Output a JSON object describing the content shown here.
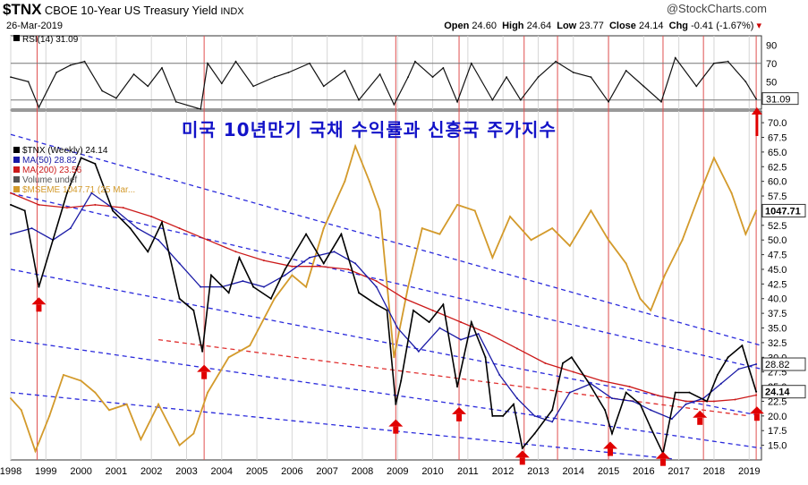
{
  "header": {
    "ticker": "$TNX",
    "name": "CBOE 10-Year US Treasury Yield",
    "exchange": "INDX",
    "date": "26-Mar-2019",
    "watermark": "@StockCharts.com",
    "ohlc": {
      "open_label": "Open",
      "open": "24.60",
      "high_label": "High",
      "high": "24.64",
      "low_label": "Low",
      "low": "23.77",
      "close_label": "Close",
      "close": "24.14",
      "chg_label": "Chg",
      "chg": "-0.41 (-1.67%)"
    }
  },
  "overlay_title": "미국 10년만기 국채 수익률과 신흥국 주가지수",
  "chart_data": {
    "type": "line",
    "x_range": [
      1998,
      2019.35
    ],
    "x_ticks": [
      "1998",
      "1999",
      "2000",
      "2001",
      "2002",
      "2003",
      "2004",
      "2005",
      "2006",
      "2007",
      "2008",
      "2009",
      "2010",
      "2011",
      "2012",
      "2013",
      "2014",
      "2015",
      "2016",
      "2017",
      "2018",
      "2019"
    ],
    "rsi_panel": {
      "legend": "RSI(14) 31.09",
      "last_value_label": "31.09",
      "ylim": [
        20,
        100
      ],
      "y_ticks": [
        "90",
        "70",
        "50",
        "30"
      ],
      "reference_lines": [
        70,
        30
      ],
      "series": [
        [
          1998.0,
          55
        ],
        [
          1998.5,
          50
        ],
        [
          1998.8,
          22
        ],
        [
          1999.3,
          60
        ],
        [
          1999.7,
          68
        ],
        [
          2000.1,
          72
        ],
        [
          2000.6,
          40
        ],
        [
          2001.0,
          32
        ],
        [
          2001.5,
          58
        ],
        [
          2001.9,
          45
        ],
        [
          2002.3,
          65
        ],
        [
          2002.7,
          28
        ],
        [
          2003.4,
          20
        ],
        [
          2003.6,
          70
        ],
        [
          2004.0,
          48
        ],
        [
          2004.4,
          72
        ],
        [
          2004.9,
          45
        ],
        [
          2005.5,
          55
        ],
        [
          2005.9,
          60
        ],
        [
          2006.5,
          70
        ],
        [
          2006.9,
          45
        ],
        [
          2007.5,
          62
        ],
        [
          2007.9,
          30
        ],
        [
          2008.5,
          58
        ],
        [
          2008.9,
          25
        ],
        [
          2009.3,
          55
        ],
        [
          2009.5,
          72
        ],
        [
          2010.0,
          55
        ],
        [
          2010.3,
          65
        ],
        [
          2010.7,
          28
        ],
        [
          2011.1,
          70
        ],
        [
          2011.7,
          30
        ],
        [
          2012.1,
          55
        ],
        [
          2012.5,
          30
        ],
        [
          2013.0,
          55
        ],
        [
          2013.5,
          72
        ],
        [
          2014.0,
          60
        ],
        [
          2014.5,
          55
        ],
        [
          2015.0,
          28
        ],
        [
          2015.5,
          62
        ],
        [
          2016.0,
          45
        ],
        [
          2016.5,
          28
        ],
        [
          2016.9,
          76
        ],
        [
          2017.5,
          45
        ],
        [
          2018.0,
          70
        ],
        [
          2018.4,
          72
        ],
        [
          2018.9,
          50
        ],
        [
          2019.2,
          31.09
        ]
      ]
    },
    "price_panel": {
      "ylim": [
        12.5,
        72
      ],
      "y_ticks": [
        "70.0",
        "67.5",
        "65.0",
        "62.5",
        "60.0",
        "57.5",
        "55.0",
        "52.5",
        "50.0",
        "47.5",
        "45.0",
        "42.5",
        "40.0",
        "37.5",
        "35.0",
        "32.5",
        "30.0",
        "27.5",
        "25.0",
        "22.5",
        "20.0",
        "17.5",
        "15.0"
      ],
      "last_value_labels": {
        "emerging": "1047.71",
        "ma50": "28.82",
        "tnx": "24.14"
      },
      "legend": [
        {
          "label": "$TNX (Weekly) 24.14",
          "color": "#000000"
        },
        {
          "label": "MA(50) 28.82",
          "color": "#1a1aa6"
        },
        {
          "label": "MA(200) 23.56",
          "color": "#cc1a1a"
        },
        {
          "label": "Volume undef",
          "color": "#555555"
        },
        {
          "label": "$MSEME 1047.71 (25 Mar...",
          "color": "#d39a2b"
        }
      ],
      "series": [
        {
          "name": "$TNX (Weekly)",
          "color": "#000000",
          "values": [
            [
              1998.0,
              56
            ],
            [
              1998.4,
              55
            ],
            [
              1998.8,
              42
            ],
            [
              1999.2,
              50
            ],
            [
              1999.6,
              58
            ],
            [
              2000.0,
              64
            ],
            [
              2000.4,
              63
            ],
            [
              2000.9,
              55
            ],
            [
              2001.4,
              52
            ],
            [
              2001.9,
              48
            ],
            [
              2002.3,
              53
            ],
            [
              2002.8,
              40
            ],
            [
              2003.2,
              38
            ],
            [
              2003.45,
              31
            ],
            [
              2003.7,
              44
            ],
            [
              2004.2,
              41
            ],
            [
              2004.5,
              47
            ],
            [
              2004.9,
              42
            ],
            [
              2005.4,
              40
            ],
            [
              2005.8,
              45
            ],
            [
              2006.4,
              51
            ],
            [
              2006.9,
              46
            ],
            [
              2007.4,
              51
            ],
            [
              2007.9,
              41
            ],
            [
              2008.4,
              39
            ],
            [
              2008.7,
              38
            ],
            [
              2008.95,
              22
            ],
            [
              2009.1,
              26
            ],
            [
              2009.45,
              38
            ],
            [
              2009.9,
              36
            ],
            [
              2010.3,
              39
            ],
            [
              2010.7,
              25
            ],
            [
              2011.1,
              36
            ],
            [
              2011.5,
              30
            ],
            [
              2011.7,
              20
            ],
            [
              2012.0,
              20
            ],
            [
              2012.3,
              22
            ],
            [
              2012.55,
              14.5
            ],
            [
              2012.9,
              17
            ],
            [
              2013.4,
              21
            ],
            [
              2013.7,
              29
            ],
            [
              2013.95,
              30
            ],
            [
              2014.4,
              26
            ],
            [
              2014.9,
              21
            ],
            [
              2015.1,
              17
            ],
            [
              2015.5,
              24
            ],
            [
              2015.9,
              22
            ],
            [
              2016.2,
              18
            ],
            [
              2016.55,
              13.6
            ],
            [
              2016.9,
              24
            ],
            [
              2017.3,
              24
            ],
            [
              2017.8,
              22.5
            ],
            [
              2018.1,
              27
            ],
            [
              2018.4,
              30
            ],
            [
              2018.8,
              32
            ],
            [
              2019.0,
              28
            ],
            [
              2019.2,
              24.14
            ]
          ]
        },
        {
          "name": "MA(50)",
          "color": "#1a1aa6",
          "values": [
            [
              1998.0,
              51
            ],
            [
              1998.6,
              52
            ],
            [
              1999.2,
              50
            ],
            [
              1999.7,
              52
            ],
            [
              2000.3,
              58
            ],
            [
              2001.0,
              55
            ],
            [
              2001.6,
              52
            ],
            [
              2002.2,
              50
            ],
            [
              2002.8,
              46
            ],
            [
              2003.4,
              42
            ],
            [
              2004.0,
              42
            ],
            [
              2004.6,
              43
            ],
            [
              2005.2,
              42
            ],
            [
              2005.8,
              44
            ],
            [
              2006.5,
              47
            ],
            [
              2007.2,
              48
            ],
            [
              2007.8,
              46
            ],
            [
              2008.4,
              42
            ],
            [
              2009.0,
              35
            ],
            [
              2009.6,
              31
            ],
            [
              2010.2,
              35
            ],
            [
              2010.8,
              33
            ],
            [
              2011.3,
              34
            ],
            [
              2011.9,
              27
            ],
            [
              2012.4,
              23
            ],
            [
              2012.9,
              20
            ],
            [
              2013.4,
              19
            ],
            [
              2013.9,
              24
            ],
            [
              2014.5,
              25.5
            ],
            [
              2015.1,
              23
            ],
            [
              2015.7,
              22.5
            ],
            [
              2016.2,
              21
            ],
            [
              2016.8,
              19.5
            ],
            [
              2017.2,
              22
            ],
            [
              2017.7,
              23
            ],
            [
              2018.2,
              25.5
            ],
            [
              2018.7,
              28
            ],
            [
              2019.2,
              28.82
            ]
          ]
        },
        {
          "name": "MA(200)",
          "color": "#cc1a1a",
          "values": [
            [
              1998.0,
              58
            ],
            [
              1998.8,
              56
            ],
            [
              1999.6,
              55.5
            ],
            [
              2000.4,
              56
            ],
            [
              2001.2,
              55.5
            ],
            [
              2002.0,
              54
            ],
            [
              2002.8,
              52
            ],
            [
              2003.6,
              50
            ],
            [
              2004.4,
              48
            ],
            [
              2005.2,
              46.5
            ],
            [
              2006.0,
              45.5
            ],
            [
              2006.8,
              45.5
            ],
            [
              2007.6,
              45
            ],
            [
              2008.4,
              43
            ],
            [
              2009.2,
              40
            ],
            [
              2010.0,
              38
            ],
            [
              2010.8,
              36
            ],
            [
              2011.6,
              34
            ],
            [
              2012.4,
              31.5
            ],
            [
              2013.2,
              29
            ],
            [
              2014.0,
              27.5
            ],
            [
              2014.8,
              26
            ],
            [
              2015.6,
              25
            ],
            [
              2016.4,
              23.5
            ],
            [
              2017.2,
              22.5
            ],
            [
              2018.0,
              22.5
            ],
            [
              2018.6,
              22.8
            ],
            [
              2019.2,
              23.56
            ]
          ]
        },
        {
          "name": "$MSEME",
          "color": "#d39a2b",
          "values": [
            [
              1998.0,
              23
            ],
            [
              1998.3,
              21
            ],
            [
              1998.7,
              14
            ],
            [
              1999.1,
              20
            ],
            [
              1999.5,
              27
            ],
            [
              2000.0,
              26
            ],
            [
              2000.4,
              24
            ],
            [
              2000.8,
              21
            ],
            [
              2001.3,
              22
            ],
            [
              2001.7,
              16
            ],
            [
              2002.2,
              22
            ],
            [
              2002.8,
              15
            ],
            [
              2003.2,
              17
            ],
            [
              2003.6,
              24
            ],
            [
              2004.2,
              30
            ],
            [
              2004.8,
              32
            ],
            [
              2005.5,
              40
            ],
            [
              2006.0,
              44
            ],
            [
              2006.4,
              42
            ],
            [
              2006.9,
              52
            ],
            [
              2007.5,
              60
            ],
            [
              2007.8,
              66
            ],
            [
              2008.2,
              60
            ],
            [
              2008.5,
              55
            ],
            [
              2008.9,
              30
            ],
            [
              2009.3,
              42
            ],
            [
              2009.7,
              52
            ],
            [
              2010.2,
              51
            ],
            [
              2010.7,
              56
            ],
            [
              2011.2,
              55
            ],
            [
              2011.7,
              47
            ],
            [
              2012.2,
              54
            ],
            [
              2012.8,
              50
            ],
            [
              2013.4,
              52
            ],
            [
              2013.9,
              49
            ],
            [
              2014.5,
              55
            ],
            [
              2015.0,
              50
            ],
            [
              2015.5,
              46
            ],
            [
              2015.9,
              40
            ],
            [
              2016.2,
              38
            ],
            [
              2016.6,
              44
            ],
            [
              2017.1,
              50
            ],
            [
              2017.6,
              58
            ],
            [
              2018.0,
              64
            ],
            [
              2018.5,
              58
            ],
            [
              2018.9,
              51
            ],
            [
              2019.2,
              55
            ]
          ]
        }
      ],
      "trend_channel_lines": [
        {
          "style": "blue-dashed",
          "points": [
            [
              1998.0,
              68
            ],
            [
              2019.35,
              32
            ]
          ]
        },
        {
          "style": "blue-dashed",
          "points": [
            [
              1998.0,
              58
            ],
            [
              2019.35,
              28
            ]
          ]
        },
        {
          "style": "blue-dashed",
          "points": [
            [
              1998.0,
              45
            ],
            [
              2019.35,
              20
            ]
          ]
        },
        {
          "style": "blue-dashed",
          "points": [
            [
              1998.0,
              33
            ],
            [
              2019.35,
              14.5
            ]
          ]
        },
        {
          "style": "blue-dashed",
          "points": [
            [
              1998.0,
              24
            ],
            [
              2016.8,
              12.7
            ]
          ]
        },
        {
          "style": "red-dashed",
          "points": [
            [
              2002.2,
              33
            ],
            [
              2019.0,
              20
            ]
          ]
        }
      ],
      "arrows": [
        {
          "x": 1998.8,
          "y": 39,
          "direction": "up"
        },
        {
          "x": 2003.5,
          "y": 27.5,
          "direction": "up"
        },
        {
          "x": 2008.95,
          "y": 18.2,
          "direction": "up"
        },
        {
          "x": 2010.75,
          "y": 20.3,
          "direction": "up"
        },
        {
          "x": 2012.55,
          "y": 12.9,
          "direction": "up"
        },
        {
          "x": 2015.05,
          "y": 14.4,
          "direction": "up"
        },
        {
          "x": 2016.55,
          "y": 12.7,
          "direction": "up"
        },
        {
          "x": 2017.6,
          "y": 19.7,
          "direction": "up"
        },
        {
          "x": 2019.22,
          "y": 20.4,
          "direction": "up"
        }
      ],
      "rsi_arrow": {
        "x": 2019.22,
        "direction": "up"
      }
    },
    "red_vertical_markers": [
      1998.75,
      2003.5,
      2008.95,
      2010.75,
      2012.6,
      2013.55,
      2015.0,
      2016.55,
      2017.7,
      2019.2
    ],
    "grid": "vertical year lines"
  }
}
